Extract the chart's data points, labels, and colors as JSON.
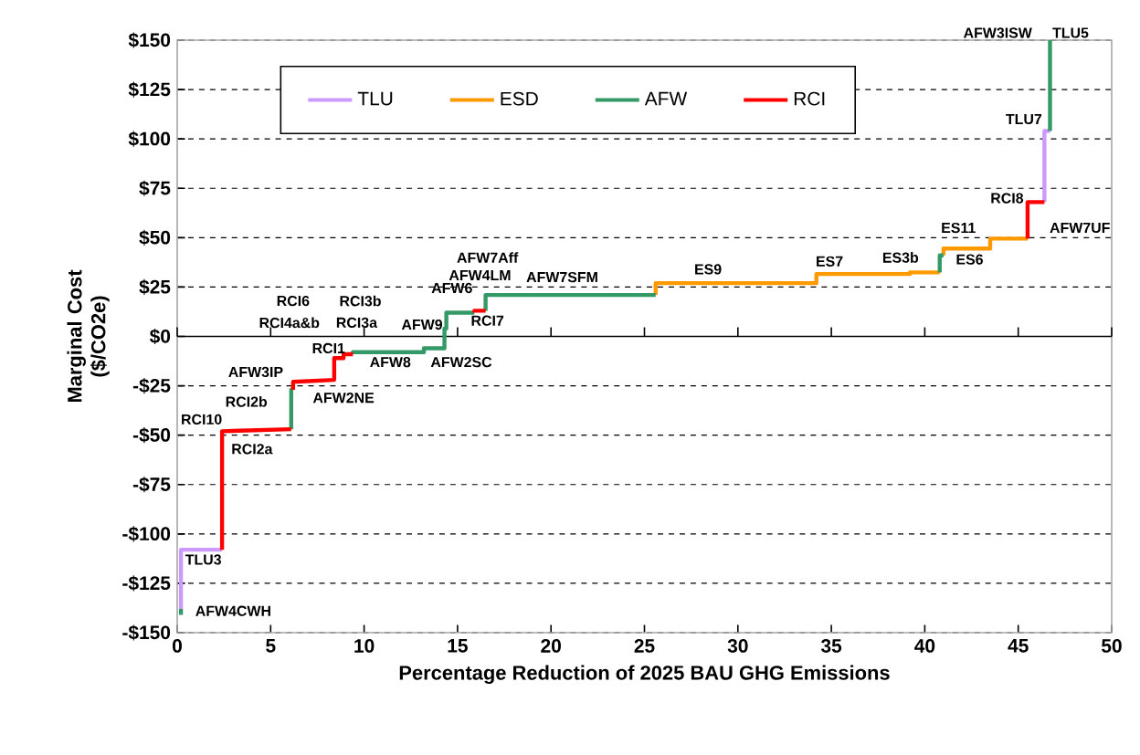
{
  "chart_data": {
    "type": "line",
    "xlabel": "Percentage Reduction of 2025 BAU GHG Emissions",
    "ylabel": "Marginal Cost ($/CO2e)",
    "xlim": [
      0,
      50
    ],
    "xticks": [
      0,
      5,
      10,
      15,
      20,
      25,
      30,
      35,
      40,
      45,
      50
    ],
    "ylim": [
      -150,
      150
    ],
    "yticks": [
      {
        "value": -150,
        "label": "-$150"
      },
      {
        "value": -125,
        "label": "-$125"
      },
      {
        "value": -100,
        "label": "-$100"
      },
      {
        "value": -75,
        "label": "-$75"
      },
      {
        "value": -50,
        "label": "-$50"
      },
      {
        "value": -25,
        "label": "-$25"
      },
      {
        "value": 0,
        "label": "$0"
      },
      {
        "value": 25,
        "label": "$25"
      },
      {
        "value": 50,
        "label": "$50"
      },
      {
        "value": 75,
        "label": "$75"
      },
      {
        "value": 100,
        "label": "$100"
      },
      {
        "value": 125,
        "label": "$125"
      },
      {
        "value": 150,
        "label": "$150"
      }
    ],
    "grid": "y",
    "legend": "top left",
    "line_style": "solid",
    "marker": "none",
    "series": [
      {
        "name": "TLU",
        "color": "#cc99ff",
        "x": [
          0.2,
          0.2,
          2.4,
          null,
          46.4,
          46.4,
          46.7
        ],
        "values": [
          -138,
          -108,
          -108,
          null,
          68,
          104,
          104
        ]
      },
      {
        "name": "ESD",
        "color": "#ff9900",
        "x": [
          25.6,
          25.6,
          34.2,
          34.2,
          39.2,
          39.2,
          40.8,
          null,
          41.0,
          41.0,
          43.5,
          43.5,
          45.5
        ],
        "values": [
          21,
          27,
          27,
          31.6,
          31.6,
          32.4,
          32.4,
          null,
          41,
          44.5,
          44.5,
          49.5,
          49.5
        ]
      },
      {
        "name": "AFW",
        "color": "#339966",
        "x": [
          0.2,
          0.2,
          null,
          6.1,
          6.1,
          6.2,
          null,
          9.4,
          9.4,
          13.2,
          13.2,
          14.3,
          14.3,
          14.4,
          14.4,
          15.9,
          null,
          16.5,
          16.5,
          25.6,
          null,
          40.8,
          40.8,
          41.0,
          null,
          46.7,
          46.7
        ],
        "values": [
          -141,
          -138,
          null,
          -47,
          -27,
          -27,
          null,
          -9,
          -8,
          -8,
          -6,
          -6,
          4,
          4,
          12,
          12,
          null,
          13,
          21,
          21,
          null,
          32.4,
          41,
          41,
          null,
          104,
          150
        ]
      },
      {
        "name": "RCI",
        "color": "#ff0000",
        "x": [
          2.4,
          2.4,
          6.1,
          null,
          6.2,
          6.2,
          8.4,
          8.4,
          8.9,
          8.9,
          9.4,
          null,
          15.9,
          15.9,
          16.5,
          null,
          45.5,
          45.5,
          46.4
        ],
        "values": [
          -108,
          -48,
          -47,
          null,
          -27,
          -23,
          -22,
          -11,
          -11,
          -9,
          -9,
          null,
          12,
          13,
          13,
          null,
          49.5,
          68,
          68
        ]
      }
    ],
    "annotations": [
      "AFW4CWH",
      "TLU3",
      "RCI2a",
      "RCI10",
      "RCI2b",
      "AFW2NE",
      "AFW3IP",
      "RCI1",
      "AFW8",
      "AFW2SC",
      "RCI4a&b",
      "RCI6",
      "RCI3b",
      "RCI3a",
      "AFW9",
      "RCI7",
      "AFW6",
      "AFW4LM",
      "AFW7Aff",
      "AFW7SFM",
      "ES9",
      "ES7",
      "ES3b",
      "ES11",
      "ES6",
      "AFW7UF",
      "RCI8",
      "TLU7",
      "AFW3ISW",
      "TLU5"
    ]
  }
}
